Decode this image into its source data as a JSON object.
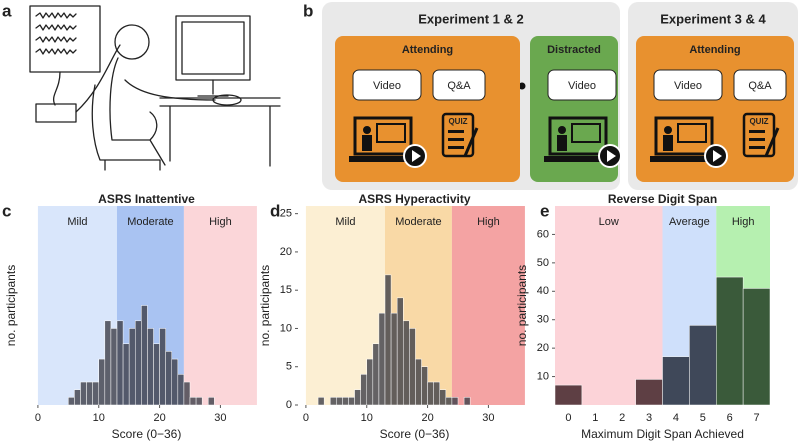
{
  "panel_labels": [
    "a",
    "b",
    "c",
    "d",
    "e"
  ],
  "diagram": {
    "groups": [
      {
        "title": "Experiment 1 & 2",
        "blocks": [
          {
            "label": "Attending",
            "items": [
              "Video",
              "Q&A"
            ]
          },
          {
            "label": "Distracted",
            "items": [
              "Video"
            ]
          }
        ]
      },
      {
        "title": "Experiment 3 & 4",
        "blocks": [
          {
            "label": "Attending",
            "items": [
              "Video",
              "Q&A"
            ]
          }
        ]
      }
    ],
    "quiz_label": "QUIZ"
  },
  "chart_data": [
    {
      "type": "histogram",
      "title": "ASRS Inattentive",
      "x_label": "Score (0−36)",
      "y_label": "no. participants",
      "bins": [
        5,
        6,
        7,
        8,
        9,
        10,
        11,
        12,
        13,
        14,
        15,
        16,
        17,
        18,
        19,
        20,
        21,
        22,
        23,
        24,
        25,
        26,
        27,
        28,
        29
      ],
      "counts": [
        1,
        2,
        3,
        3,
        3,
        6,
        11,
        10,
        11,
        8,
        10,
        11,
        13,
        10,
        8,
        10,
        7,
        6,
        4,
        3,
        1,
        1,
        0,
        1
      ],
      "color": "#3d3f48",
      "xlim": [
        -1.3,
        37
      ],
      "xticks": [
        0,
        10,
        20,
        30
      ],
      "ylim": [
        0,
        26
      ],
      "regions": [
        {
          "label": "Mild",
          "from": 0,
          "to": 13,
          "color": "#d9e6fb"
        },
        {
          "label": "Moderate",
          "from": 13,
          "to": 24,
          "color": "#a9c3f2"
        },
        {
          "label": "High",
          "from": 24,
          "to": 36,
          "color": "#fbd6d9"
        }
      ]
    },
    {
      "type": "histogram",
      "title": "ASRS Hyperactivity",
      "x_label": "Score (0−36)",
      "y_label": "no. participants",
      "bins": [
        2,
        3,
        4,
        5,
        6,
        7,
        8,
        9,
        10,
        11,
        12,
        13,
        14,
        15,
        16,
        17,
        18,
        19,
        20,
        21,
        22,
        23,
        24,
        25,
        26,
        27
      ],
      "counts": [
        1,
        0,
        1,
        1,
        1,
        1,
        2,
        4,
        6,
        8,
        12,
        17,
        12,
        14,
        11,
        10,
        6,
        5,
        3,
        3,
        2,
        1,
        1,
        0,
        1
      ],
      "color": "#3d3f48",
      "xlim": [
        -1.3,
        37
      ],
      "xticks": [
        0,
        10,
        20,
        30
      ],
      "ylim": [
        0,
        26
      ],
      "yticks": [
        0,
        5,
        10,
        15,
        20,
        25
      ],
      "regions": [
        {
          "label": "Mild",
          "from": 0,
          "to": 13,
          "color": "#fcefd3"
        },
        {
          "label": "Moderate",
          "from": 13,
          "to": 24,
          "color": "#f9d9a6"
        },
        {
          "label": "High",
          "from": 24,
          "to": 36,
          "color": "#f4a3a3"
        }
      ]
    },
    {
      "type": "bar",
      "title": "Reverse Digit Span",
      "x_label": "Maximum Digit Span Achieved",
      "y_label": "no. participants",
      "categories": [
        "0",
        "1",
        "2",
        "3",
        "4",
        "5",
        "6",
        "7"
      ],
      "values": [
        7,
        0,
        0,
        9,
        17,
        28,
        45,
        41
      ],
      "colors": [
        "#5e3f44",
        "#5e3f44",
        "#5e3f44",
        "#5e3f44",
        "#3f4859",
        "#3f4859",
        "#3a5a3a",
        "#3a5a3a"
      ],
      "ylim": [
        0,
        70
      ],
      "yticks": [
        10,
        20,
        30,
        40,
        50,
        60
      ],
      "regions": [
        {
          "label": "Low",
          "first": 0,
          "last": 3,
          "color": "#fcd3d8"
        },
        {
          "label": "Average",
          "first": 4,
          "last": 5,
          "color": "#cfe0fb"
        },
        {
          "label": "High",
          "first": 6,
          "last": 7,
          "color": "#b6f0b0"
        }
      ]
    }
  ]
}
